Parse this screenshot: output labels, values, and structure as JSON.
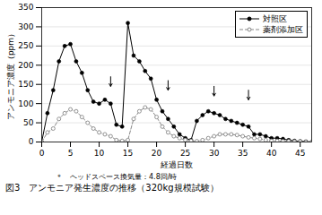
{
  "chart_data": {
    "type": "line",
    "xlabel": "経過日数",
    "ylabel": "アンモニア濃度（ppm）",
    "footnote": "＊　ヘッドスペース換気量：4.8回/時",
    "caption": "図3　アンモニア発生濃度の推移（320kg規模試験）",
    "x": [
      0,
      1,
      2,
      3,
      4,
      5,
      6,
      7,
      8,
      9,
      10,
      11,
      12,
      13,
      14,
      15,
      16,
      17,
      18,
      19,
      20,
      21,
      22,
      23,
      24,
      25,
      26,
      27,
      28,
      29,
      30,
      31,
      32,
      33,
      34,
      35,
      36,
      37,
      38,
      39,
      40,
      41,
      42,
      43,
      44,
      45,
      46,
      47
    ],
    "series": [
      {
        "name": "対照区",
        "color": "#000000",
        "marker": "filled_circle",
        "line_style": "solid",
        "values": [
          0,
          75,
          135,
          210,
          250,
          255,
          210,
          180,
          135,
          105,
          100,
          110,
          100,
          45,
          40,
          310,
          225,
          210,
          185,
          165,
          110,
          80,
          60,
          40,
          20,
          10,
          5,
          55,
          70,
          80,
          75,
          70,
          60,
          55,
          50,
          45,
          40,
          20,
          20,
          15,
          10,
          10,
          8,
          5,
          3,
          2,
          1,
          0
        ]
      },
      {
        "name": "薬剤添加区",
        "color": "#888888",
        "marker": "open_circle",
        "line_style": "dashed",
        "values": [
          0,
          25,
          35,
          60,
          75,
          85,
          80,
          65,
          50,
          35,
          25,
          20,
          15,
          5,
          3,
          5,
          60,
          80,
          90,
          85,
          65,
          40,
          25,
          15,
          10,
          5,
          3,
          2,
          5,
          10,
          15,
          20,
          20,
          20,
          18,
          15,
          12,
          10,
          8,
          5,
          3,
          3,
          2,
          2,
          1,
          1,
          0,
          0
        ]
      }
    ],
    "arrows": [
      {
        "x": 12,
        "y_start": 170,
        "y_end": 145
      },
      {
        "x": 22,
        "y_start": 160,
        "y_end": 135
      },
      {
        "x": 30,
        "y_start": 145,
        "y_end": 120
      },
      {
        "x": 36,
        "y_start": 135,
        "y_end": 110
      }
    ],
    "xlim": [
      0,
      47
    ],
    "ylim": [
      0,
      350
    ],
    "xticks": [
      0,
      5,
      10,
      15,
      20,
      25,
      30,
      35,
      40,
      45
    ],
    "yticks": [
      0,
      50,
      100,
      150,
      200,
      250,
      300,
      350
    ],
    "grid": "y",
    "legend": "upper right"
  }
}
